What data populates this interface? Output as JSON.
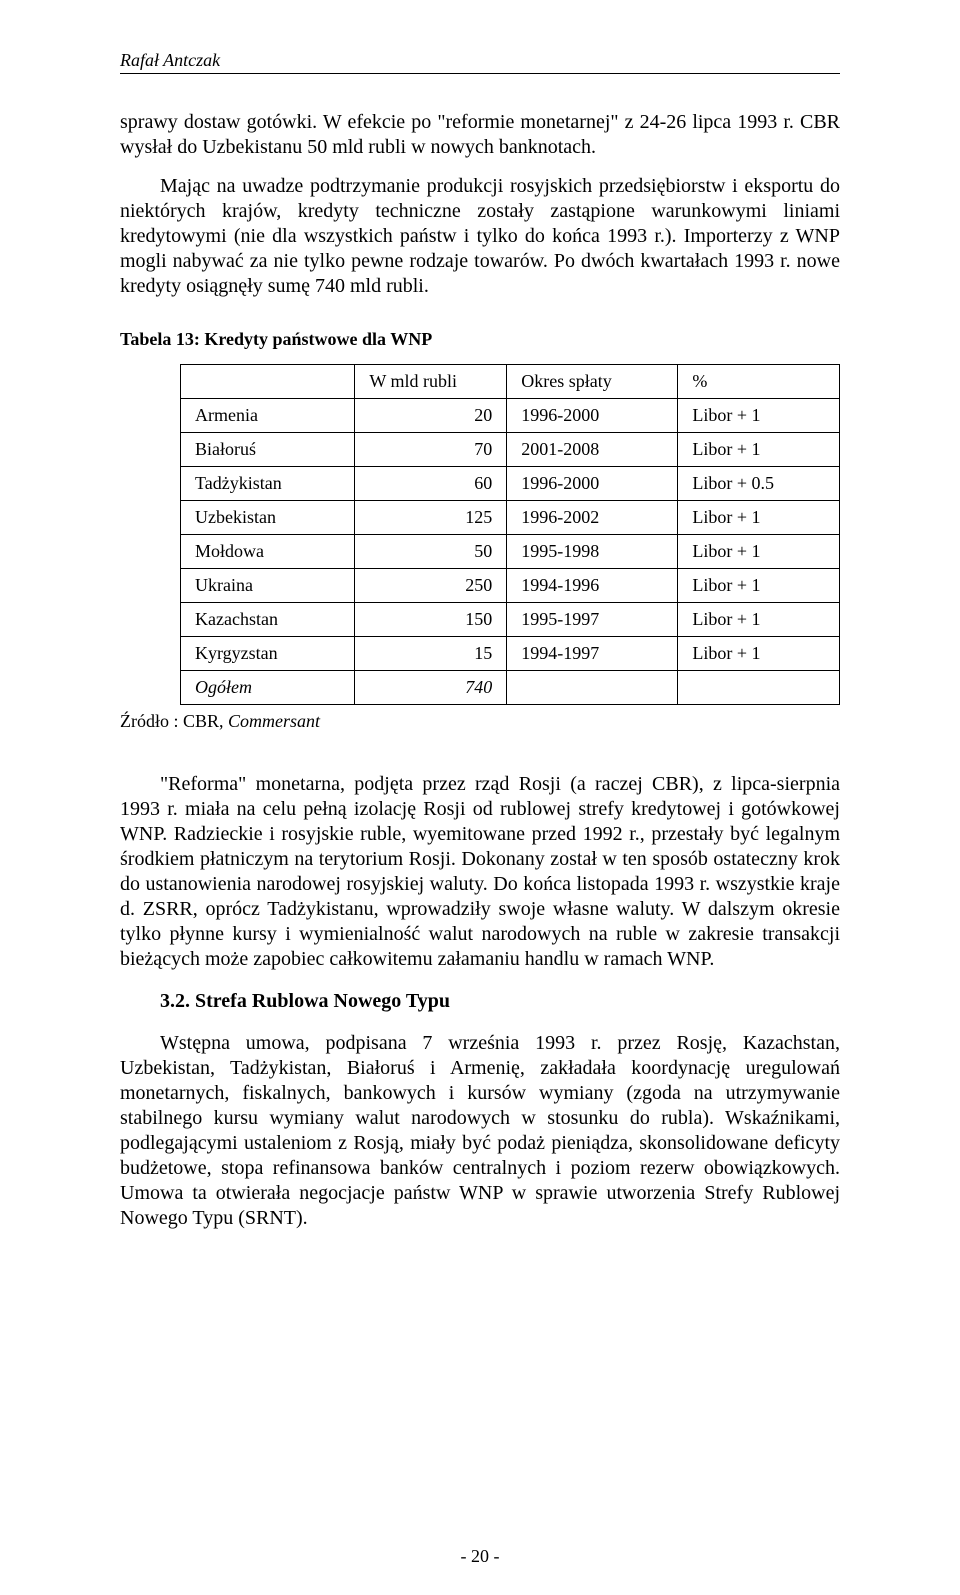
{
  "header": {
    "author": "Rafał Antczak"
  },
  "para1": "sprawy dostaw gotówki. W efekcie po \"reformie monetarnej\" z 24-26 lipca 1993 r. CBR wysłał do Uzbekistanu 50 mld rubli w nowych banknotach.",
  "para2": "Mając na uwadze podtrzymanie produkcji rosyjskich przedsiębiorstw i eksportu do niektórych krajów, kredyty techniczne zostały zastąpione warunkowymi liniami kredytowymi (nie dla wszystkich państw i tylko do końca 1993 r.). Importerzy z WNP mogli nabywać za nie tylko pewne rodzaje towarów. Po dwóch kwartałach 1993 r. nowe kredyty osiągnęły sumę 740 mld rubli.",
  "table": {
    "title": "Tabela 13: Kredyty państwowe dla WNP",
    "headers": {
      "c1": "",
      "c2": "W mld rubli",
      "c3": "Okres spłaty",
      "c4": "%"
    },
    "rows": [
      {
        "country": "Armenia",
        "amount": "20",
        "period": "1996-2000",
        "rate": "Libor + 1"
      },
      {
        "country": "Białoruś",
        "amount": "70",
        "period": "2001-2008",
        "rate": "Libor + 1"
      },
      {
        "country": "Tadżykistan",
        "amount": "60",
        "period": "1996-2000",
        "rate": "Libor + 0.5"
      },
      {
        "country": "Uzbekistan",
        "amount": "125",
        "period": "1996-2002",
        "rate": "Libor + 1"
      },
      {
        "country": "Mołdowa",
        "amount": "50",
        "period": "1995-1998",
        "rate": "Libor + 1"
      },
      {
        "country": "Ukraina",
        "amount": "250",
        "period": "1994-1996",
        "rate": "Libor + 1"
      },
      {
        "country": "Kazachstan",
        "amount": "150",
        "period": "1995-1997",
        "rate": "Libor + 1"
      },
      {
        "country": "Kyrgyzstan",
        "amount": "15",
        "period": "1994-1997",
        "rate": "Libor + 1"
      }
    ],
    "total": {
      "label": "Ogółem",
      "amount": "740"
    }
  },
  "source": {
    "label": "Źródło : CBR, ",
    "name": "Commersant"
  },
  "para3": "\"Reforma\" monetarna, podjęta przez rząd Rosji (a raczej CBR), z lipca-sierpnia 1993 r. miała na celu pełną izolację Rosji od rublowej strefy kredytowej i gotówkowej WNP. Radzieckie i rosyjskie ruble, wyemitowane przed 1992 r., przestały być legalnym środkiem płatniczym na terytorium Rosji. Dokonany został w ten sposób ostateczny krok do ustanowienia narodowej rosyjskiej waluty. Do końca listopada 1993 r. wszystkie kraje d. ZSRR, oprócz Tadżykistanu, wprowadziły swoje własne waluty. W dalszym okresie tylko płynne kursy i wymienialność walut narodowych na ruble w zakresie transakcji bieżących może zapobiec całkowitemu załamaniu handlu w ramach WNP.",
  "section": {
    "heading": "3.2. Strefa Rublowa Nowego Typu"
  },
  "para4": "Wstępna umowa, podpisana 7 września 1993 r. przez Rosję, Kazachstan, Uzbekistan, Tadżykistan, Białoruś i Armenię, zakładała koordynację uregulowań monetarnych, fiskalnych, bankowych i kursów wymiany (zgoda na utrzymywanie stabilnego kursu wymiany walut narodowych w stosunku do rubla). Wskaźnikami, podlegającymi ustaleniom z Rosją, miały być podaż pieniądza, skonsolidowane deficyty budżetowe, stopa refinansowa banków centralnych i poziom rezerw obowiązkowych. Umowa ta otwierała negocjacje państw WNP w sprawie utworzenia Strefy Rublowej Nowego Typu (SRNT).",
  "pagenum": "- 20 -"
}
